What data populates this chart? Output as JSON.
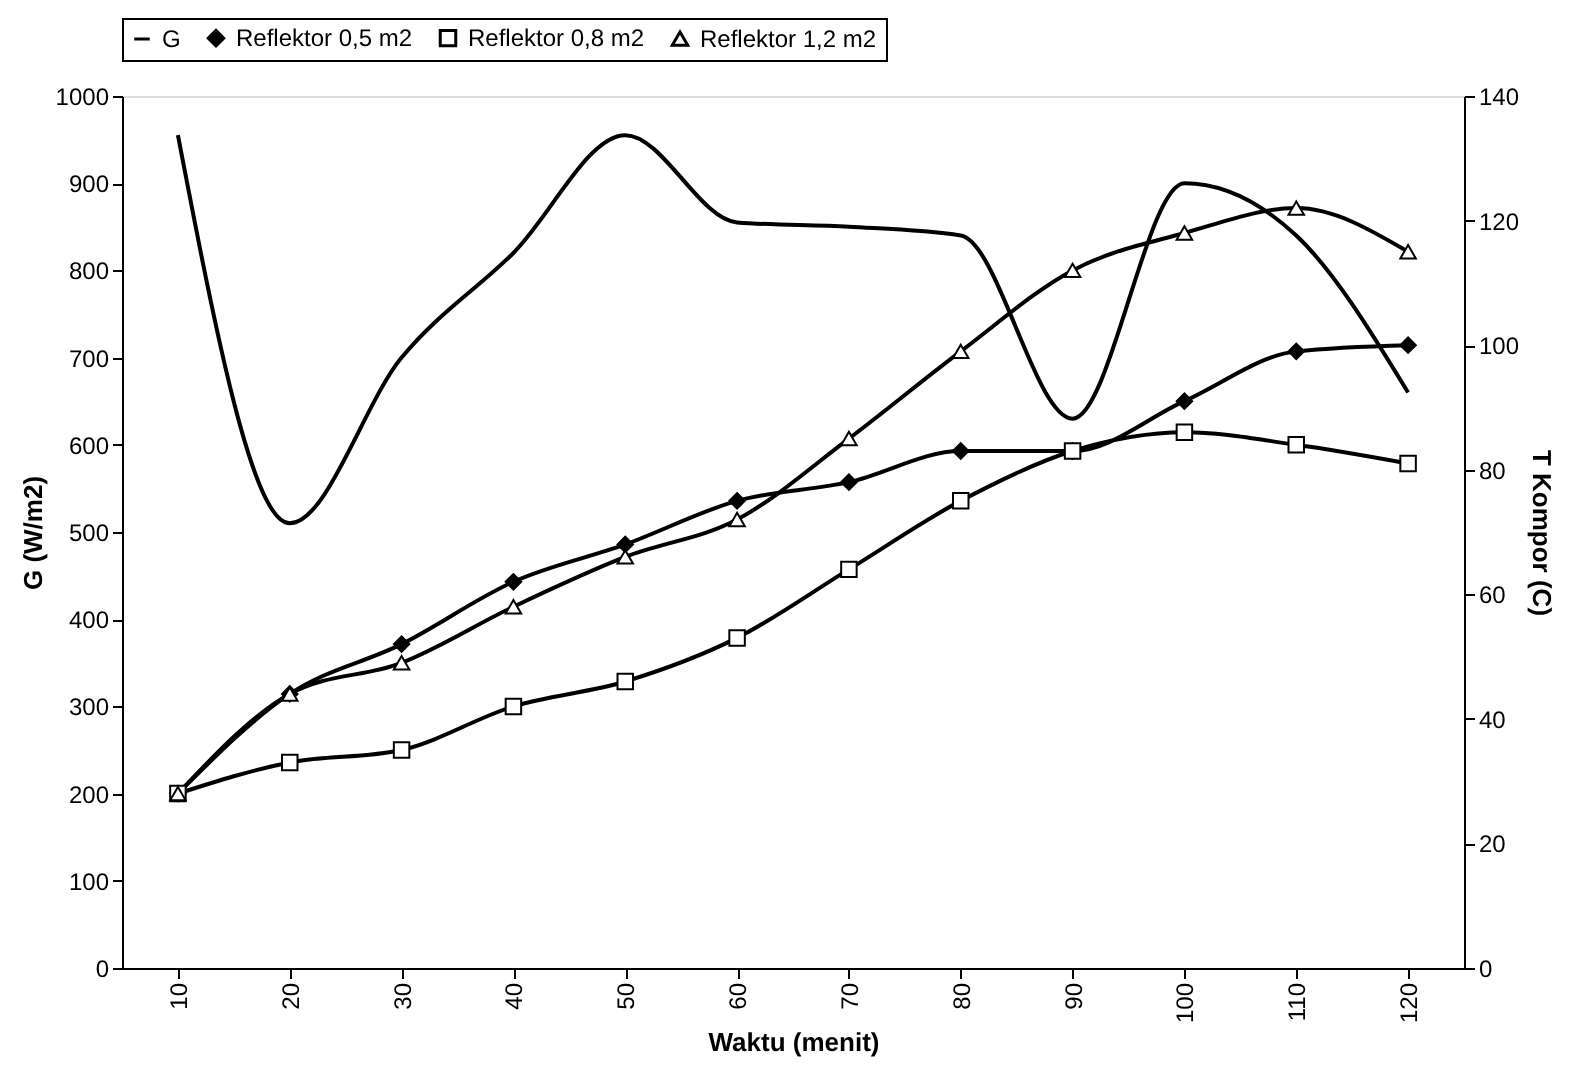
{
  "chart_data": {
    "type": "line",
    "xlabel": "Waktu (menit)",
    "ylabel": "G (W/m2)",
    "y2label": "T Kompor (C)",
    "categories": [
      "10",
      "20",
      "30",
      "40",
      "50",
      "60",
      "70",
      "80",
      "90",
      "100",
      "110",
      "120"
    ],
    "series": [
      {
        "name": "G",
        "color": "#000000",
        "marker": "none",
        "values": [
          955,
          510,
          700,
          820,
          955,
          855,
          850,
          840,
          630,
          900,
          840,
          660
        ]
      },
      {
        "name": "Reflektor 0,5 m2",
        "color": "#000000",
        "marker": "diamond",
        "axis": "y2",
        "values": [
          28,
          44,
          52,
          62,
          68,
          75,
          78,
          83,
          83,
          91,
          99,
          100
        ]
      },
      {
        "name": "Reflektor 0,8 m2",
        "color": "#000000",
        "marker": "square",
        "axis": "y2",
        "values": [
          28,
          33,
          35,
          42,
          46,
          53,
          64,
          75,
          83,
          86,
          84,
          81
        ]
      },
      {
        "name": "Reflektor 1,2 m2",
        "color": "#000000",
        "marker": "triangle",
        "axis": "y2",
        "values": [
          28,
          44,
          49,
          58,
          66,
          72,
          85,
          99,
          112,
          118,
          122,
          115
        ]
      }
    ],
    "ylim": [
      0,
      1000
    ],
    "yticks": [
      0,
      100,
      200,
      300,
      400,
      500,
      600,
      700,
      800,
      900,
      1000
    ],
    "y2lim": [
      0,
      140
    ],
    "y2ticks": [
      0,
      20,
      40,
      60,
      80,
      100,
      120,
      140
    ],
    "legend": "top",
    "grid": false
  }
}
